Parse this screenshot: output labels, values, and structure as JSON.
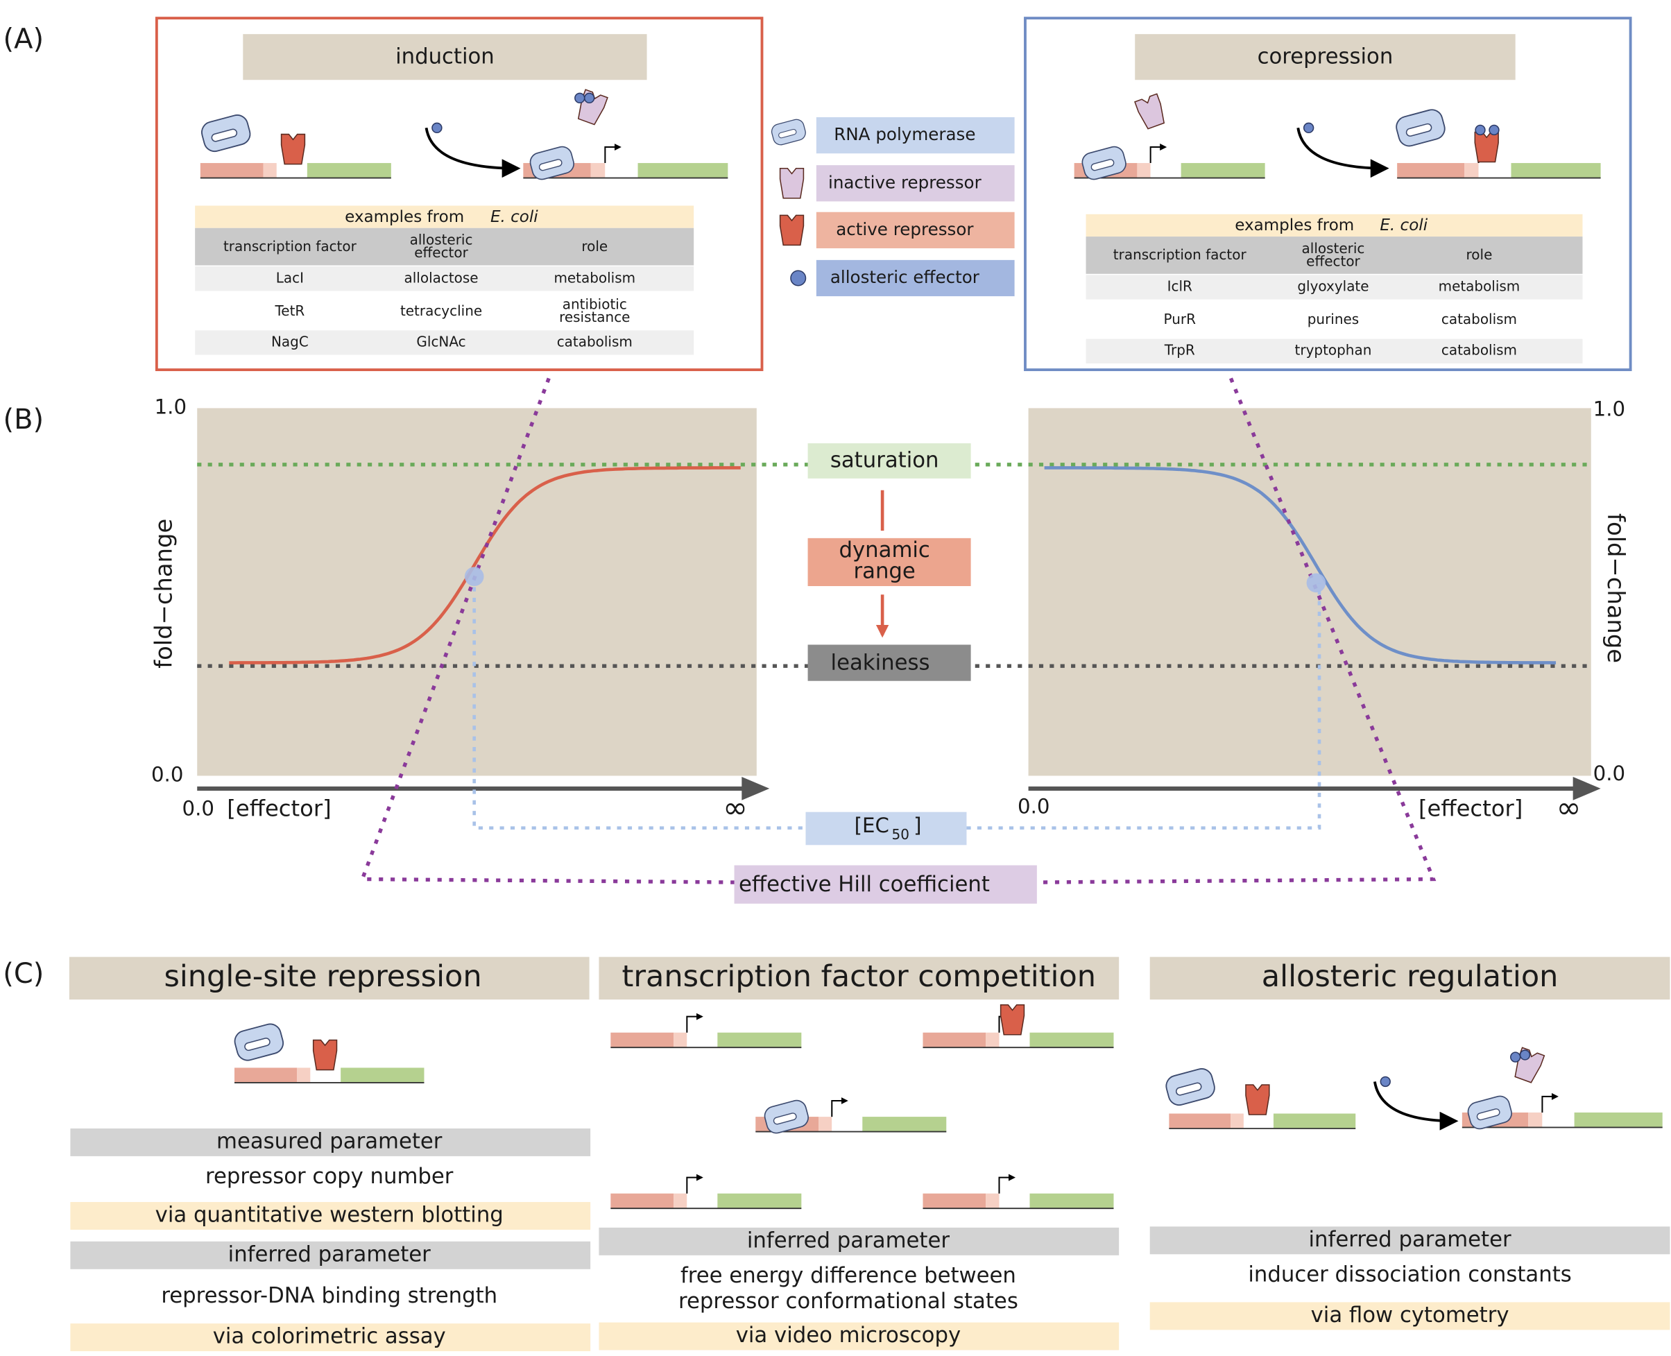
{
  "panel_labels": [
    "(A)",
    "(B)",
    "(C)"
  ],
  "induction": {
    "title": "induction",
    "examples_label": "examples from",
    "organism": "E. coli",
    "columns": [
      [
        "transcription factor"
      ],
      [
        "allosteric",
        "effector"
      ],
      [
        "role"
      ]
    ],
    "rows": [
      [
        [
          "LacI"
        ],
        [
          "allolactose"
        ],
        [
          "metabolism"
        ]
      ],
      [
        [
          "TetR"
        ],
        [
          "tetracycline"
        ],
        [
          "antibiotic",
          "resistance"
        ]
      ],
      [
        [
          "NagC"
        ],
        [
          "GlcNAc"
        ],
        [
          "catabolism"
        ]
      ]
    ]
  },
  "corepression": {
    "title": "corepression",
    "examples_label": "examples from",
    "organism": "E. coli",
    "columns": [
      [
        "transcription factor"
      ],
      [
        "allosteric",
        "effector"
      ],
      [
        "role"
      ]
    ],
    "rows": [
      [
        [
          "IclR"
        ],
        [
          "glyoxylate"
        ],
        [
          "metabolism"
        ]
      ],
      [
        [
          "PurR"
        ],
        [
          "purines"
        ],
        [
          "catabolism"
        ]
      ],
      [
        [
          "TrpR"
        ],
        [
          "tryptophan"
        ],
        [
          "catabolism"
        ]
      ]
    ]
  },
  "legend": [
    "RNA polymerase",
    "inactive repressor",
    "active repressor",
    "allosteric effector"
  ],
  "response": {
    "y_axis_label": "fold−change",
    "y_top": "1.0",
    "y_bottom": "0.0",
    "x_start": "0.0",
    "x_axis_label": "[effector]",
    "x_end": "∞",
    "saturation": "saturation",
    "dynamic_range": [
      "dynamic",
      "range"
    ],
    "leakiness": "leakiness",
    "ec50": "[EC",
    "ec50_sub": "50",
    "ec50_close": "]",
    "hill": "effective Hill coefficient"
  },
  "panel_c": [
    {
      "title": "single-site repression",
      "blocks": [
        [
          "gray",
          "measured parameter"
        ],
        [
          "plain",
          "repressor copy number"
        ],
        [
          "yellow",
          "via quantitative western blotting"
        ],
        [
          "gray",
          "inferred parameter"
        ],
        [
          "plain",
          "repressor-DNA binding strength"
        ],
        [
          "yellow",
          "via colorimetric assay"
        ]
      ]
    },
    {
      "title": "transcription factor competition",
      "blocks": [
        [
          "gray",
          "inferred parameter"
        ],
        [
          "plain",
          "free energy difference between"
        ],
        [
          "plain",
          "repressor conformational states"
        ],
        [
          "yellow",
          "via video microscopy"
        ]
      ]
    },
    {
      "title": "allosteric regulation",
      "blocks": [
        [
          "gray",
          "inferred parameter"
        ],
        [
          "plain",
          "inducer dissociation constants"
        ],
        [
          "yellow",
          "via flow cytometry"
        ]
      ]
    }
  ]
}
